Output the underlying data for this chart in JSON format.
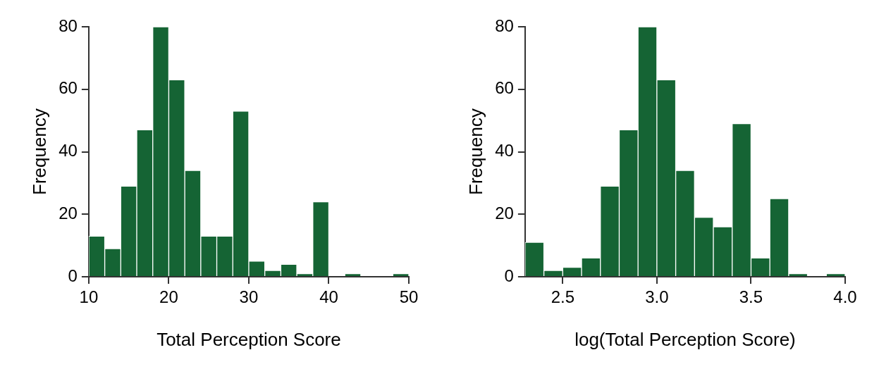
{
  "chart_data": [
    {
      "type": "histogram",
      "xlabel": "Total Perception Score",
      "ylabel": "Frequency",
      "color": "#156434",
      "bins": [
        10,
        12,
        14,
        16,
        18,
        20,
        22,
        24,
        26,
        28,
        30,
        32,
        34,
        36,
        38,
        40,
        42,
        44,
        46,
        48,
        50
      ],
      "values": [
        13,
        9,
        29,
        47,
        80,
        63,
        34,
        13,
        13,
        53,
        5,
        2,
        4,
        1,
        24,
        0,
        1,
        0,
        0,
        1
      ],
      "xlim": [
        10,
        50
      ],
      "xticks": [
        10,
        20,
        30,
        40,
        50
      ],
      "ylim": [
        0,
        80
      ],
      "yticks": [
        0,
        20,
        40,
        60,
        80
      ]
    },
    {
      "type": "histogram",
      "xlabel": "log(Total Perception Score)",
      "ylabel": "Frequency",
      "color": "#156434",
      "bins": [
        2.3,
        2.4,
        2.5,
        2.6,
        2.7,
        2.8,
        2.9,
        3.0,
        3.1,
        3.2,
        3.3,
        3.4,
        3.5,
        3.6,
        3.7,
        3.8,
        3.9,
        4.0
      ],
      "values": [
        11,
        2,
        3,
        6,
        29,
        47,
        80,
        63,
        34,
        19,
        16,
        49,
        6,
        25,
        1,
        0,
        1
      ],
      "xlim": [
        2.3,
        4.0
      ],
      "xticks": [
        {
          "value": 2.5,
          "label": "2.5"
        },
        {
          "value": 3.0,
          "label": "3.0"
        },
        {
          "value": 3.5,
          "label": "3.5"
        },
        {
          "value": 4.0,
          "label": "4.0"
        }
      ],
      "ylim": [
        0,
        80
      ],
      "yticks": [
        0,
        20,
        40,
        60,
        80
      ]
    }
  ]
}
